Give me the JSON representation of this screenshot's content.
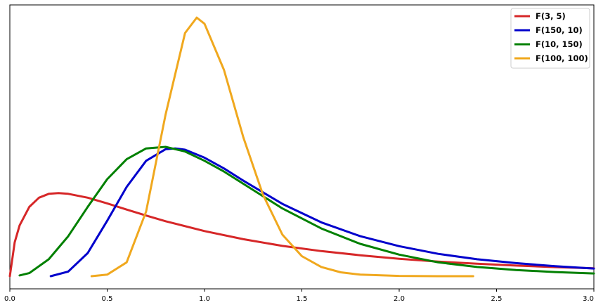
{
  "chart_data": {
    "type": "line",
    "xlim": [
      0,
      3
    ],
    "x_ticks": [
      "0.0",
      "0.5",
      "1.0",
      "1.5",
      "2.0",
      "2.5",
      "3.0"
    ],
    "y_ticks_shown": false,
    "grid": false,
    "legend_position": "top-right",
    "series": [
      {
        "name": "F(3, 5)",
        "color": "#d62728",
        "x": [
          0.0,
          0.025,
          0.05,
          0.1,
          0.15,
          0.2,
          0.25,
          0.3,
          0.4,
          0.5,
          0.6,
          0.7,
          0.8,
          1.0,
          1.2,
          1.4,
          1.6,
          1.8,
          2.0,
          2.2,
          2.4,
          2.6,
          2.8,
          3.0
        ],
        "y": [
          0.0,
          0.22,
          0.33,
          0.45,
          0.51,
          0.535,
          0.54,
          0.535,
          0.51,
          0.473,
          0.433,
          0.394,
          0.357,
          0.293,
          0.24,
          0.197,
          0.163,
          0.136,
          0.113,
          0.095,
          0.081,
          0.069,
          0.059,
          0.051
        ]
      },
      {
        "name": "F(150, 10)",
        "color": "#0000cc",
        "x": [
          0.21,
          0.3,
          0.4,
          0.5,
          0.6,
          0.7,
          0.8,
          0.85,
          0.9,
          1.0,
          1.1,
          1.2,
          1.4,
          1.6,
          1.8,
          2.0,
          2.2,
          2.4,
          2.6,
          2.8,
          3.0
        ],
        "y": [
          0.0,
          0.03,
          0.15,
          0.36,
          0.58,
          0.75,
          0.825,
          0.83,
          0.822,
          0.77,
          0.7,
          0.62,
          0.47,
          0.35,
          0.26,
          0.195,
          0.145,
          0.11,
          0.085,
          0.065,
          0.05
        ]
      },
      {
        "name": "F(10, 150)",
        "color": "#008000",
        "x": [
          0.05,
          0.1,
          0.2,
          0.3,
          0.4,
          0.5,
          0.6,
          0.7,
          0.8,
          0.9,
          1.0,
          1.1,
          1.2,
          1.4,
          1.6,
          1.8,
          2.0,
          2.2,
          2.4,
          2.6,
          2.8,
          3.0
        ],
        "y": [
          0.005,
          0.02,
          0.11,
          0.26,
          0.45,
          0.63,
          0.76,
          0.83,
          0.84,
          0.81,
          0.75,
          0.68,
          0.6,
          0.44,
          0.31,
          0.21,
          0.14,
          0.09,
          0.06,
          0.04,
          0.027,
          0.018
        ]
      },
      {
        "name": "F(100, 100)",
        "color": "#f0a81e",
        "x": [
          0.42,
          0.5,
          0.6,
          0.7,
          0.8,
          0.9,
          0.96,
          1.0,
          1.1,
          1.2,
          1.3,
          1.4,
          1.5,
          1.6,
          1.7,
          1.8,
          2.0,
          2.2,
          2.38
        ],
        "y": [
          0.0,
          0.01,
          0.09,
          0.42,
          1.05,
          1.58,
          1.68,
          1.64,
          1.34,
          0.9,
          0.53,
          0.27,
          0.13,
          0.06,
          0.025,
          0.01,
          0.002,
          0.0,
          0.0
        ]
      }
    ]
  }
}
